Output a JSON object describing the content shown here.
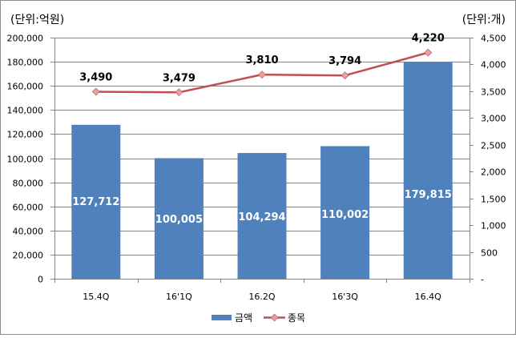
{
  "chart_data": {
    "type": "bar",
    "combo": "bar+line",
    "title": "",
    "categories": [
      "15.4Q",
      "16'1Q",
      "16.2Q",
      "16'3Q",
      "16.4Q"
    ],
    "series": [
      {
        "name": "금액",
        "type": "bar",
        "axis": "left",
        "color": "#4F81BD",
        "values": [
          127712,
          100005,
          104294,
          110002,
          179815
        ],
        "labels": [
          "127,712",
          "100,005",
          "104,294",
          "110,002",
          "179,815"
        ]
      },
      {
        "name": "종목",
        "type": "line",
        "axis": "right",
        "color": "#C0504D",
        "marker_color": "#E6A09E",
        "values": [
          3490,
          3479,
          3810,
          3794,
          4220
        ],
        "labels": [
          "3,490",
          "3,479",
          "3,810",
          "3,794",
          "4,220"
        ]
      }
    ],
    "y_left": {
      "label": "(단위:억원)",
      "ylim": [
        0,
        200000
      ],
      "ticks": [
        "0",
        "20,000",
        "40,000",
        "60,000",
        "80,000",
        "100,000",
        "120,000",
        "140,000",
        "160,000",
        "180,000",
        "200,000"
      ]
    },
    "y_right": {
      "label": "(단위:개)",
      "ylim": [
        0,
        4500
      ],
      "ticks": [
        "-",
        "500",
        "1,000",
        "1,500",
        "2,000",
        "2,500",
        "3,000",
        "3,500",
        "4,000",
        "4,500"
      ]
    },
    "grid": true,
    "legend_position": "bottom",
    "legend": [
      "금액",
      "종목"
    ]
  }
}
